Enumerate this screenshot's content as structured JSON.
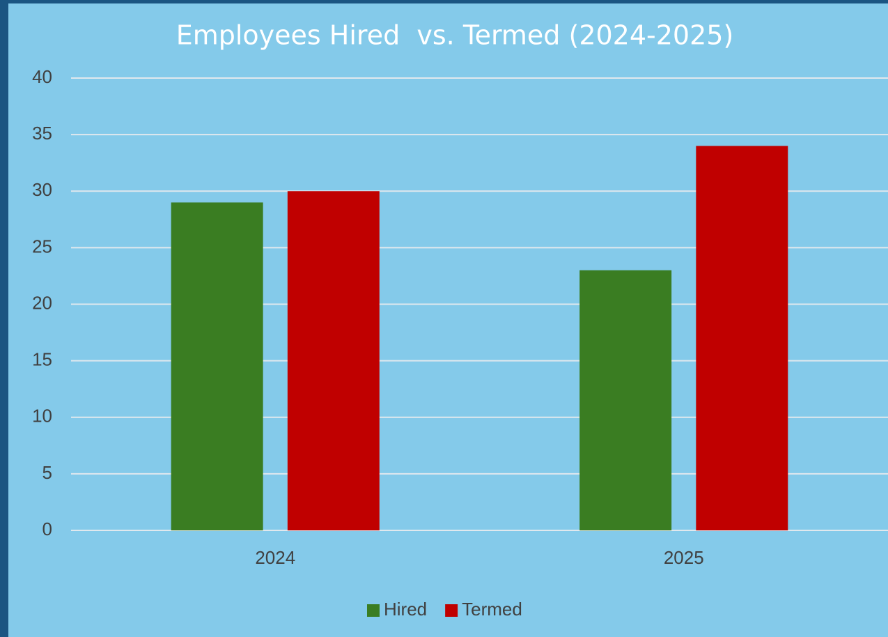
{
  "chart_data": {
    "type": "bar",
    "title": "Employees Hired  vs. Termed (2024-2025)",
    "categories": [
      "2024",
      "2025"
    ],
    "series": [
      {
        "name": "Hired",
        "color": "#3a7d22",
        "values": [
          29,
          23
        ]
      },
      {
        "name": "Termed",
        "color": "#c00000",
        "values": [
          30,
          34
        ]
      }
    ],
    "ylim": [
      0,
      40
    ],
    "yticks": [
      0,
      5,
      10,
      15,
      20,
      25,
      30,
      35,
      40
    ],
    "grid": true,
    "legend": "bottom"
  }
}
